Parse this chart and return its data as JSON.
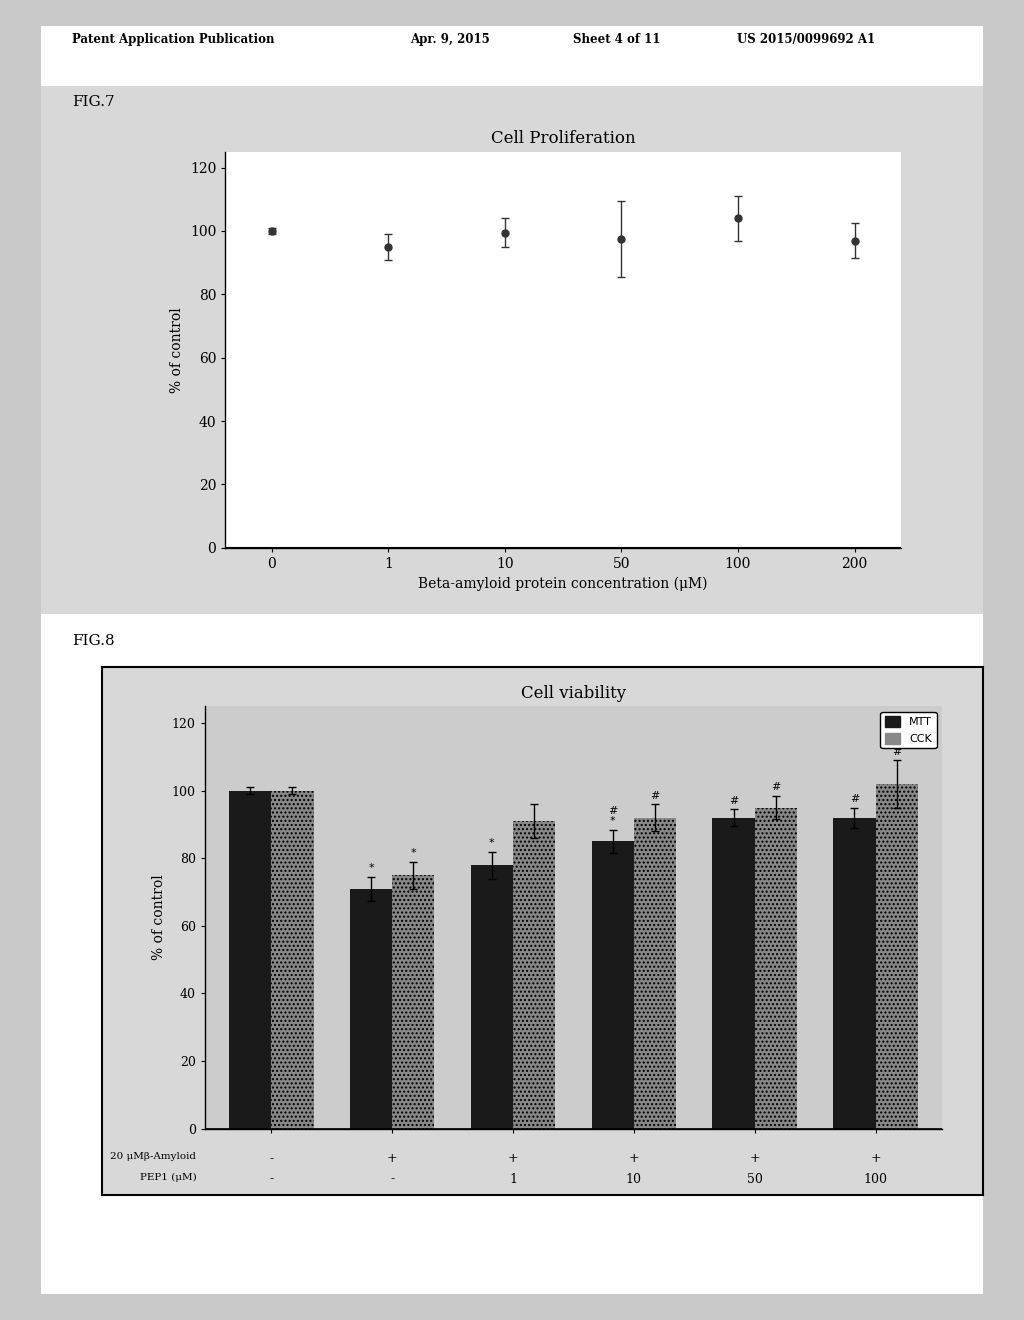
{
  "fig7": {
    "title": "Cell Proliferation",
    "xlabel": "Beta-amyloid protein concentration (μM)",
    "ylabel": "% of control",
    "x_labels": [
      "0",
      "1",
      "10",
      "50",
      "100",
      "200"
    ],
    "y": [
      100.0,
      95.0,
      99.5,
      97.5,
      104.0,
      97.0
    ],
    "yerr": [
      1.0,
      4.0,
      4.5,
      12.0,
      7.0,
      5.5
    ],
    "ylim": [
      0,
      125
    ],
    "yticks": [
      0,
      20,
      40,
      60,
      80,
      100,
      120
    ],
    "line_color": "#333333",
    "marker": "o",
    "marker_size": 5
  },
  "fig8": {
    "title": "Cell viability",
    "ylabel": "% of control",
    "ylim": [
      0,
      125
    ],
    "yticks": [
      0,
      20,
      40,
      60,
      80,
      100,
      120
    ],
    "mtt_values": [
      100.0,
      71.0,
      78.0,
      85.0,
      92.0,
      92.0
    ],
    "cck_values": [
      100.0,
      75.0,
      91.0,
      92.0,
      95.0,
      102.0
    ],
    "mtt_yerr": [
      1.0,
      3.5,
      4.0,
      3.5,
      2.5,
      3.0
    ],
    "cck_yerr": [
      1.0,
      4.0,
      5.0,
      4.0,
      3.5,
      7.0
    ],
    "mtt_color": "#1a1a1a",
    "cck_color": "#888888",
    "group_labels_row1": [
      "-",
      "+",
      "+",
      "+",
      "+",
      "+"
    ],
    "group_labels_row2": [
      "-",
      "-",
      "1",
      "10",
      "50",
      "100"
    ],
    "row1_label": "20 μMβ-Amyloid",
    "row2_label": "PEP1 (μM)",
    "ann_mtt": [
      "",
      "*",
      "*",
      "#\n*",
      "#",
      "#"
    ],
    "ann_cck": [
      "",
      "*",
      "",
      "#",
      "#",
      "#"
    ],
    "bar_width": 0.35,
    "legend_mtt": "MTT",
    "legend_cck": "CCK"
  },
  "header": "Patent Application Publication",
  "header_date": "Apr. 9, 2015",
  "header_sheet": "Sheet 4 of 11",
  "header_us": "US 2015/0099692 A1",
  "fig7_label": "FIG.7",
  "fig8_label": "FIG.8",
  "page_bg": "#c8c8c8",
  "content_bg": "#e0e0e0",
  "plot_bg": "#f0f0f0"
}
